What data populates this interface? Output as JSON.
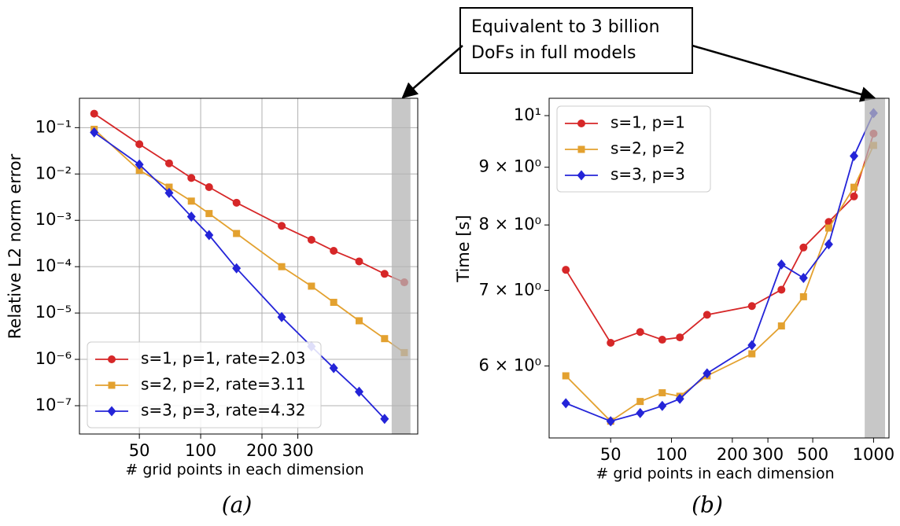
{
  "annotation": [
    "Equivalent to 3 billion",
    "DoFs in full models"
  ],
  "chart_data": [
    {
      "type": "line",
      "caption": "(a)",
      "xlabel": "# grid points in each dimension",
      "ylabel": "Relative L2 norm error",
      "xscale": "log",
      "yscale": "log",
      "grid": true,
      "legend": "lower left",
      "xlim": [
        25.4,
        1164
      ],
      "ylim": [
        2.45e-08,
        0.43
      ],
      "xticks": [
        50,
        100,
        200,
        300
      ],
      "yticks": [
        {
          "value": 1e-07,
          "label": "10⁻⁷"
        },
        {
          "value": 1e-06,
          "label": "10⁻⁶"
        },
        {
          "value": 1e-05,
          "label": "10⁻⁵"
        },
        {
          "value": 0.0001,
          "label": "10⁻⁴"
        },
        {
          "value": 0.001,
          "label": "10⁻³"
        },
        {
          "value": 0.01,
          "label": "10⁻²"
        },
        {
          "value": 0.1,
          "label": "10⁻¹"
        }
      ],
      "highlight_x": [
        867,
        1072
      ],
      "x": [
        30,
        50,
        70,
        90,
        110,
        150,
        250,
        350,
        450,
        600,
        800,
        1000
      ],
      "series": [
        {
          "name": "s=1, p=1, rate=2.03",
          "color": "#d62728",
          "marker": "circle",
          "values": [
            0.2,
            0.044,
            0.017,
            0.0082,
            0.0052,
            0.0024,
            0.00076,
            0.00038,
            0.00022,
            0.00013,
            7e-05,
            4.6e-05
          ]
        },
        {
          "name": "s=2, p=2, rate=3.11",
          "color": "#e3a12f",
          "marker": "square",
          "values": [
            0.092,
            0.012,
            0.0052,
            0.0026,
            0.0014,
            0.00052,
            0.0001,
            3.8e-05,
            1.7e-05,
            6.8e-06,
            2.8e-06,
            1.4e-06
          ]
        },
        {
          "name": "s=3, p=3, rate=4.32",
          "color": "#2424d8",
          "marker": "diamond",
          "values": [
            0.079,
            0.016,
            0.0039,
            0.0012,
            0.00048,
            9.2e-05,
            8.2e-06,
            1.9e-06,
            6.5e-07,
            2e-07,
            5.2e-08,
            null
          ]
        }
      ]
    },
    {
      "type": "line",
      "caption": "(b)",
      "xlabel": "# grid points in each dimension",
      "ylabel": "Time [s]",
      "xscale": "log",
      "yscale": "log",
      "grid": false,
      "legend": "upper left",
      "xlim": [
        24.8,
        1192
      ],
      "ylim": [
        5.18,
        10.36
      ],
      "xticks": [
        50,
        100,
        200,
        300,
        500,
        1000
      ],
      "yticks": [
        {
          "value": 6,
          "label": "6 × 10⁰"
        },
        {
          "value": 7,
          "label": "7 × 10⁰"
        },
        {
          "value": 8,
          "label": "8 × 10⁰"
        },
        {
          "value": 9,
          "label": "9 × 10⁰"
        },
        {
          "value": 10,
          "label": "10¹"
        }
      ],
      "highlight_x": [
        904,
        1140
      ],
      "x": [
        30,
        50,
        70,
        90,
        110,
        150,
        250,
        350,
        450,
        600,
        800,
        1000
      ],
      "series": [
        {
          "name": "s=1, p=1",
          "color": "#d62728",
          "marker": "circle",
          "values": [
            7.3,
            6.29,
            6.43,
            6.33,
            6.36,
            6.66,
            6.78,
            7.01,
            7.64,
            8.05,
            8.48,
            9.64
          ]
        },
        {
          "name": "s=2, p=2",
          "color": "#e3a12f",
          "marker": "square",
          "values": [
            5.88,
            5.36,
            5.58,
            5.68,
            5.64,
            5.88,
            6.15,
            6.51,
            6.91,
            7.95,
            8.64,
            9.41
          ]
        },
        {
          "name": "s=3, p=3",
          "color": "#2424d8",
          "marker": "diamond",
          "values": [
            5.56,
            5.36,
            5.45,
            5.53,
            5.61,
            5.91,
            6.26,
            7.38,
            7.18,
            7.69,
            9.21,
            10.05
          ]
        }
      ]
    }
  ]
}
